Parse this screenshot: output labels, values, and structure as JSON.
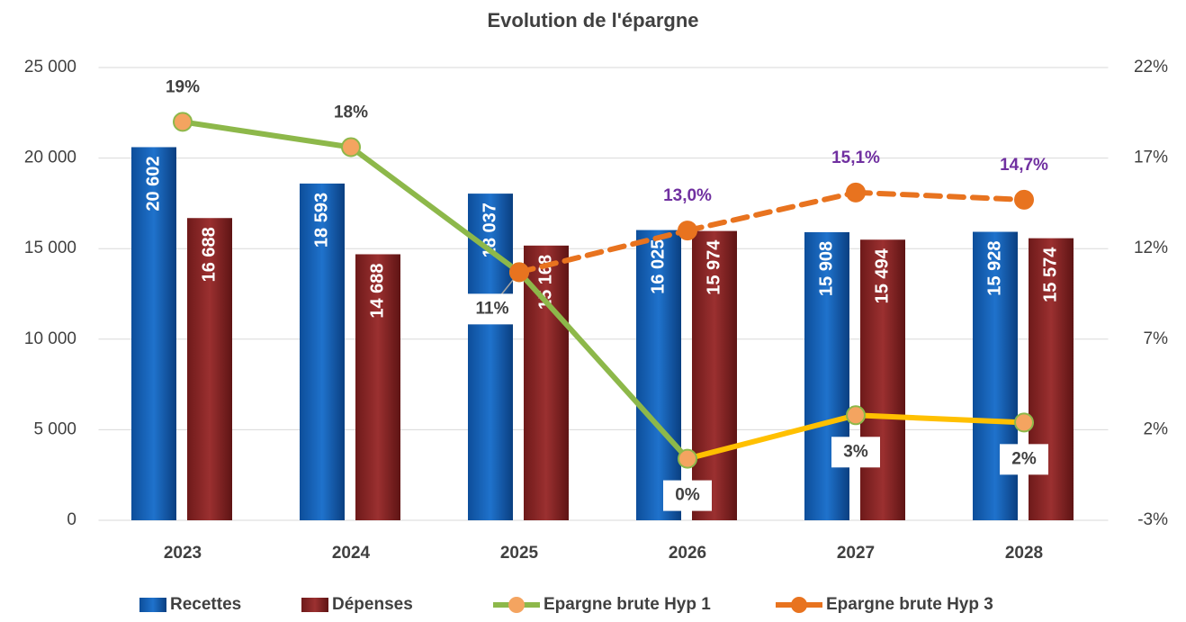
{
  "chart_data": {
    "type": "bar_line",
    "title": "Evolution de l'épargne",
    "categories": [
      "2023",
      "2024",
      "2025",
      "2026",
      "2027",
      "2028"
    ],
    "ylim": [
      0,
      25000
    ],
    "yticks": [
      {
        "value": 0,
        "label": "0"
      },
      {
        "value": 5000,
        "label": "5 000"
      },
      {
        "value": 10000,
        "label": "10 000"
      },
      {
        "value": 15000,
        "label": "15 000"
      },
      {
        "value": 20000,
        "label": "20 000"
      },
      {
        "value": 25000,
        "label": "25 000"
      }
    ],
    "y2lim": [
      -3,
      22
    ],
    "y2ticks": [
      {
        "value": -3,
        "label": "-3%"
      },
      {
        "value": 2,
        "label": "2%"
      },
      {
        "value": 7,
        "label": "7%"
      },
      {
        "value": 12,
        "label": "12%"
      },
      {
        "value": 17,
        "label": "17%"
      },
      {
        "value": 22,
        "label": "22%"
      }
    ],
    "grid": true,
    "legend": "bottom",
    "series": [
      {
        "name": "Recettes",
        "type": "bar",
        "color": "#1f6fc5",
        "values": [
          20602,
          18593,
          18037,
          16025,
          15908,
          15928
        ],
        "value_labels": [
          "20 602",
          "18 593",
          "18 037",
          "16 025",
          "15 908",
          "15 928"
        ]
      },
      {
        "name": "Dépenses",
        "type": "bar",
        "color": "#8b2525",
        "values": [
          16688,
          14688,
          15168,
          15974,
          15494,
          15574
        ],
        "value_labels": [
          "16 688",
          "14 688",
          "15 168",
          "15 974",
          "15 494",
          "15 574"
        ]
      },
      {
        "name": "Epargne brute Hyp 1",
        "type": "line",
        "axis": "y2",
        "color": "#8db84a",
        "marker_color": "#f4a460",
        "segment_colors": [
          "#8db84a",
          "#8db84a",
          "#8db84a",
          "#ffc000",
          "#ffc000"
        ],
        "values": [
          19.0,
          17.6,
          10.7,
          0.4,
          2.8,
          2.4
        ],
        "value_labels": [
          "19%",
          "18%",
          "11%",
          "0%",
          "3%",
          "2%"
        ]
      },
      {
        "name": "Epargne brute Hyp 3",
        "type": "line",
        "axis": "y2",
        "dashed": true,
        "color": "#e8731f",
        "marker_color": "#e8731f",
        "label_color": "#7030a0",
        "values": [
          null,
          null,
          10.7,
          13.0,
          15.1,
          14.7
        ],
        "value_labels": [
          null,
          null,
          null,
          "13,0%",
          "15,1%",
          "14,7%"
        ]
      }
    ]
  }
}
